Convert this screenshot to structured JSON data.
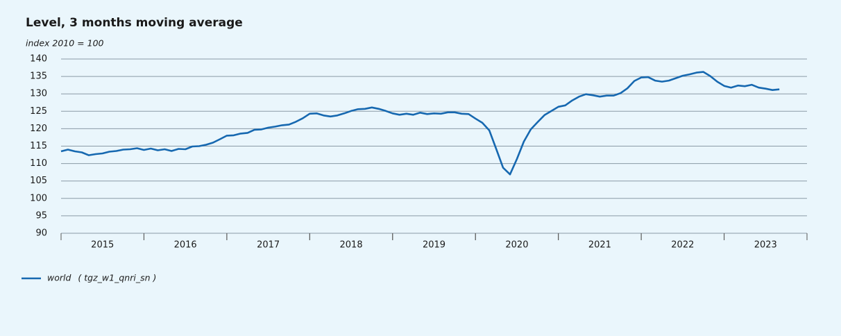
{
  "chart_data": {
    "type": "line",
    "title": "Level, 3 months moving average",
    "subtitle": "index 2010 = 100",
    "xlim": [
      2015,
      2024
    ],
    "xticks": [
      {
        "value": 2015.5,
        "label": "2015"
      },
      {
        "value": 2016.5,
        "label": "2016"
      },
      {
        "value": 2017.5,
        "label": "2017"
      },
      {
        "value": 2018.5,
        "label": "2018"
      },
      {
        "value": 2019.5,
        "label": "2019"
      },
      {
        "value": 2020.5,
        "label": "2020"
      },
      {
        "value": 2021.5,
        "label": "2021"
      },
      {
        "value": 2022.5,
        "label": "2022"
      },
      {
        "value": 2023.5,
        "label": "2023"
      }
    ],
    "ylim": [
      90,
      140
    ],
    "yticks": [
      90,
      95,
      100,
      105,
      110,
      115,
      120,
      125,
      130,
      135,
      140
    ],
    "grid": true,
    "legend": "bottom-left",
    "x": [
      2015,
      2015.083,
      2015.167,
      2015.25,
      2015.333,
      2015.417,
      2015.5,
      2015.583,
      2015.667,
      2015.75,
      2015.833,
      2015.917,
      2016,
      2016.083,
      2016.167,
      2016.25,
      2016.333,
      2016.417,
      2016.5,
      2016.583,
      2016.667,
      2016.75,
      2016.833,
      2016.917,
      2017,
      2017.083,
      2017.167,
      2017.25,
      2017.333,
      2017.417,
      2017.5,
      2017.583,
      2017.667,
      2017.75,
      2017.833,
      2017.917,
      2018,
      2018.083,
      2018.167,
      2018.25,
      2018.333,
      2018.417,
      2018.5,
      2018.583,
      2018.667,
      2018.75,
      2018.833,
      2018.917,
      2019,
      2019.083,
      2019.167,
      2019.25,
      2019.333,
      2019.417,
      2019.5,
      2019.583,
      2019.667,
      2019.75,
      2019.833,
      2019.917,
      2020,
      2020.083,
      2020.167,
      2020.25,
      2020.333,
      2020.417,
      2020.5,
      2020.583,
      2020.667,
      2020.75,
      2020.833,
      2020.917,
      2021,
      2021.083,
      2021.167,
      2021.25,
      2021.333,
      2021.417,
      2021.5,
      2021.583,
      2021.667,
      2021.75,
      2021.833,
      2021.917,
      2022,
      2022.083,
      2022.167,
      2022.25,
      2022.333,
      2022.417,
      2022.5,
      2022.583,
      2022.667,
      2022.75,
      2022.833,
      2022.917,
      2023,
      2023.083,
      2023.167,
      2023.25,
      2023.333,
      2023.417,
      2023.5,
      2023.583,
      2023.667
    ],
    "series": [
      {
        "name": "world",
        "code": "( tgz_w1_qnri_sn )",
        "color": "#1668b0",
        "values": [
          113.5,
          114,
          113.5,
          113.2,
          112.4,
          112.7,
          112.9,
          113.4,
          113.6,
          114,
          114.1,
          114.4,
          113.9,
          114.3,
          113.8,
          114.1,
          113.6,
          114.2,
          114.1,
          114.9,
          115,
          115.4,
          116,
          117,
          118,
          118.1,
          118.6,
          118.8,
          119.7,
          119.8,
          120.3,
          120.6,
          121,
          121.2,
          122,
          123,
          124.3,
          124.4,
          123.8,
          123.5,
          123.8,
          124.4,
          125.1,
          125.6,
          125.7,
          126.1,
          125.7,
          125.1,
          124.4,
          124,
          124.3,
          124,
          124.6,
          124.2,
          124.4,
          124.3,
          124.7,
          124.7,
          124.3,
          124.2,
          122.9,
          121.7,
          119.5,
          114.2,
          108.8,
          106.9,
          111.3,
          116.3,
          119.8,
          121.9,
          123.9,
          125.1,
          126.3,
          126.7,
          128.1,
          129.2,
          129.9,
          129.6,
          129.2,
          129.5,
          129.5,
          130.2,
          131.6,
          133.7,
          134.7,
          134.8,
          133.8,
          133.5,
          133.8,
          134.5,
          135.2,
          135.6,
          136.1,
          136.3,
          135.1,
          133.5,
          132.3,
          131.8,
          132.4,
          132.2,
          132.6,
          131.8,
          131.5,
          131.1,
          131.3
        ]
      }
    ]
  }
}
